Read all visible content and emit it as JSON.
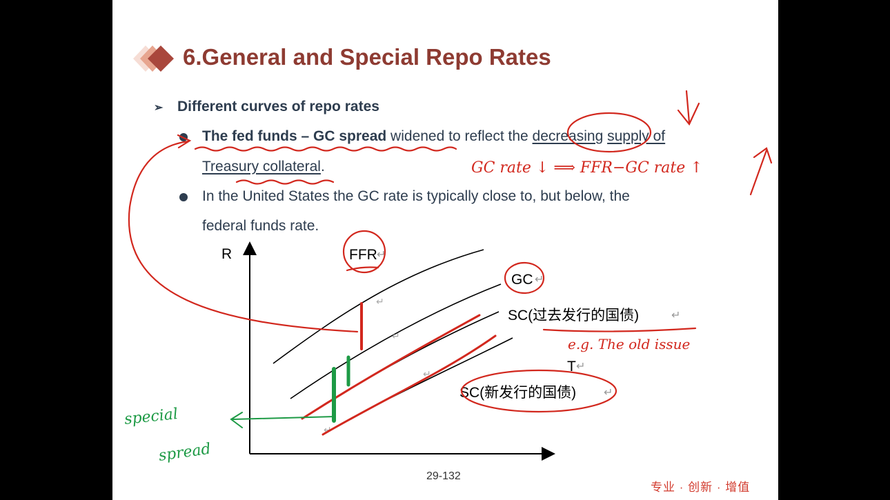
{
  "slide": {
    "title": "6.General and Special Repo Rates",
    "heading": "Different curves of repo rates",
    "heading_marker": "➢",
    "bullet1": {
      "bold": "The fed funds – GC spread",
      "text1": " widened to reflect the ",
      "link1": "decreasing",
      "space": " ",
      "link2": "supply of",
      "line2_link": "Treasury collateral",
      "line2_end": "."
    },
    "bullet2": {
      "line1": "In the United States the GC rate is typically close to, but below, the",
      "line2": "federal funds rate."
    },
    "page_number": "29-132",
    "brand": "专业 · 创新 · 增值"
  },
  "chart": {
    "y_axis_label": "R",
    "x_axis_label": "T",
    "curve_labels": {
      "ffr": "FFR",
      "gc": "GC",
      "sc_old": "SC(过去发行的国债)",
      "sc_new": "SC(新发行的国债)"
    },
    "return_mark": "↵"
  },
  "annotations": {
    "gc_rate": "GC rate ↓ ⟹ FFR−GC rate ↑",
    "old_issue": "e.g. The old issue",
    "special": "special",
    "spread": "spread"
  },
  "colors": {
    "title": "#8e3b32",
    "text": "#2e3d4f",
    "ink_red": "#d2281e",
    "ink_green": "#1d9a45",
    "brand": "#d23b2e"
  }
}
